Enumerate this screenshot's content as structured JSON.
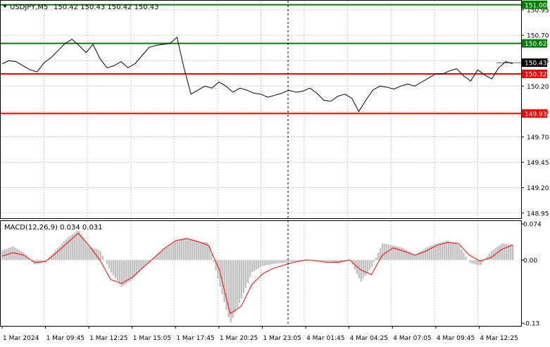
{
  "header": {
    "symbol": "USDJPY,M5",
    "ohlc": "150.42 150.43 150.42 150.43"
  },
  "macd_header": "MACD(12,26,9) 0.034 0.031",
  "colors": {
    "grid": "#c8c8c8",
    "price_line": "#000000",
    "green_level": "#008000",
    "red_level": "#ff0000",
    "histogram": "#c0c0c0",
    "signal_line": "#ff0000",
    "current_price_bg": "#000000",
    "current_price_text": "#ffffff"
  },
  "chart_data": {
    "type": "line",
    "price_axis_labels": [
      "150.95",
      "150.70",
      "150.45",
      "150.20",
      "149.95",
      "149.70",
      "149.45",
      "149.20",
      "148.95"
    ],
    "price_ylim": [
      148.9,
      151.04
    ],
    "levels": [
      {
        "value": 151.0,
        "label": "151.00",
        "color": "green"
      },
      {
        "value": 150.62,
        "label": "150.62",
        "color": "green"
      },
      {
        "value": 150.32,
        "label": "150.32",
        "color": "red"
      },
      {
        "value": 149.93,
        "label": "149.93",
        "color": "red"
      }
    ],
    "current_price": "150.43",
    "price_series": [
      150.42,
      150.45,
      150.44,
      150.4,
      150.36,
      150.34,
      150.43,
      150.48,
      150.55,
      150.62,
      150.66,
      150.6,
      150.53,
      150.61,
      150.47,
      150.38,
      150.4,
      150.44,
      150.38,
      150.42,
      150.5,
      150.58,
      150.6,
      150.61,
      150.62,
      150.68,
      150.38,
      150.12,
      150.16,
      150.2,
      150.18,
      150.24,
      150.2,
      150.14,
      150.18,
      150.16,
      150.13,
      150.12,
      150.09,
      150.11,
      150.13,
      150.16,
      150.14,
      150.15,
      150.18,
      150.13,
      150.06,
      150.05,
      150.1,
      150.12,
      150.08,
      149.95,
      150.06,
      150.16,
      150.2,
      150.19,
      150.17,
      150.2,
      150.22,
      150.2,
      150.24,
      150.28,
      150.32,
      150.32,
      150.35,
      150.37,
      150.3,
      150.25,
      150.36,
      150.31,
      150.27,
      150.38,
      150.44,
      150.42
    ],
    "macd_axis_labels": [
      "0.074",
      "0.00",
      "-0.13"
    ],
    "macd_ylim": [
      -0.135,
      0.08
    ],
    "macd_histogram": [
      0.02,
      0.028,
      0.015,
      -0.01,
      -0.004,
      0.022,
      0.045,
      0.062,
      0.028,
      0.02,
      -0.025,
      -0.055,
      -0.04,
      -0.015,
      0.005,
      0.025,
      0.04,
      0.045,
      0.038,
      0.036,
      -0.05,
      -0.13,
      -0.08,
      -0.025,
      -0.012,
      -0.008,
      -0.006,
      -0.003,
      0.0,
      0.0,
      -0.005,
      -0.008,
      0.002,
      -0.045,
      -0.015,
      0.034,
      0.03,
      0.024,
      0.01,
      0.025,
      0.034,
      0.04,
      0.032,
      -0.005,
      -0.012,
      0.018,
      0.034,
      0.031
    ],
    "macd_signal": [
      0.008,
      0.015,
      0.01,
      -0.005,
      -0.003,
      0.015,
      0.035,
      0.055,
      0.03,
      0.0,
      -0.04,
      -0.048,
      -0.035,
      -0.015,
      0.005,
      0.025,
      0.04,
      0.044,
      0.038,
      0.03,
      -0.02,
      -0.11,
      -0.095,
      -0.05,
      -0.028,
      -0.017,
      -0.01,
      -0.004,
      0.0,
      -0.002,
      -0.005,
      -0.004,
      0.0,
      -0.02,
      -0.03,
      0.01,
      0.025,
      0.018,
      0.01,
      0.018,
      0.03,
      0.036,
      0.034,
      0.01,
      -0.002,
      0.005,
      0.022,
      0.031
    ],
    "time_labels": [
      "1 Mar 2024",
      "1 Mar 09:45",
      "1 Mar 12:25",
      "1 Mar 15:05",
      "1 Mar 17:45",
      "1 Mar 20:25",
      "1 Mar 23:05",
      "4 Mar 01:45",
      "4 Mar 04:25",
      "4 Mar 07:05",
      "4 Mar 09:45",
      "4 Mar 12:25"
    ],
    "grid": true
  }
}
